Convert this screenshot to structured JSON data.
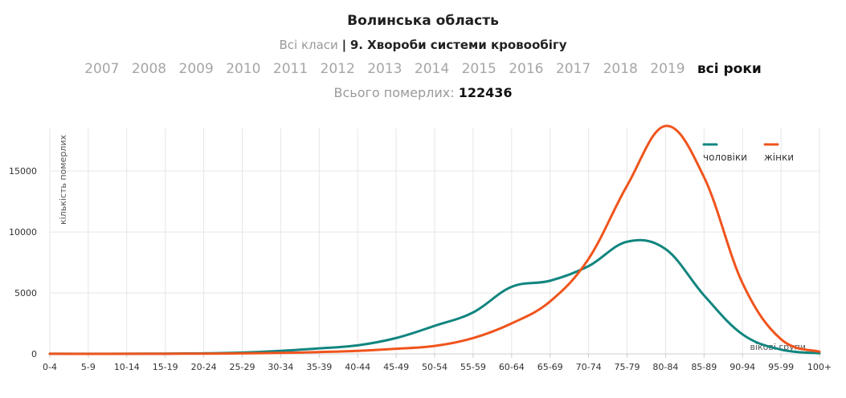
{
  "header": {
    "region": "Волинська область",
    "class_filter": "Всі класи",
    "separator": "|",
    "selected_class": "9. Хвороби системи кровообігу",
    "years": [
      "2007",
      "2008",
      "2009",
      "2010",
      "2011",
      "2012",
      "2013",
      "2014",
      "2015",
      "2016",
      "2017",
      "2018",
      "2019",
      "всі роки"
    ],
    "active_year": "всі роки",
    "total_label": "Всього померлих:",
    "total_value": "122436"
  },
  "colors": {
    "men": "#11857f",
    "women": "#f0541c",
    "grid": "#e6e6e6",
    "axis": "#cccccc"
  },
  "chart_data": {
    "type": "line",
    "ylabel": "кількість померлих",
    "xlabel": "вікові групи",
    "ylim": [
      0,
      18500
    ],
    "yticks": [
      0,
      5000,
      10000,
      15000
    ],
    "grid": true,
    "legend": "top-right",
    "categories": [
      "0-4",
      "5-9",
      "10-14",
      "15-19",
      "20-24",
      "25-29",
      "30-34",
      "35-39",
      "40-44",
      "45-49",
      "50-54",
      "55-59",
      "60-64",
      "65-69",
      "70-74",
      "75-79",
      "80-84",
      "85-89",
      "90-94",
      "95-99",
      "100+"
    ],
    "series": [
      {
        "name": "чоловіки",
        "color": "#11857f",
        "values": [
          10,
          5,
          8,
          20,
          45,
          110,
          250,
          450,
          700,
          1300,
          2300,
          3400,
          5500,
          6000,
          7200,
          9200,
          8600,
          4800,
          1600,
          350,
          50
        ]
      },
      {
        "name": "жінки",
        "color": "#f0541c",
        "values": [
          8,
          3,
          5,
          10,
          20,
          40,
          80,
          150,
          250,
          420,
          650,
          1300,
          2500,
          4300,
          7800,
          13800,
          18700,
          14500,
          5800,
          1200,
          180
        ]
      }
    ]
  }
}
